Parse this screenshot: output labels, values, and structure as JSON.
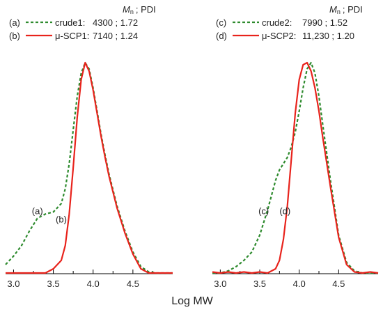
{
  "xlabel": "Log MW",
  "chart_data": [
    {
      "type": "line",
      "xlim": [
        2.9,
        5.0
      ],
      "ylim": [
        0,
        1.0
      ],
      "xticks": [
        "3.0",
        "3.5",
        "4.0",
        "4.5"
      ],
      "legend": {
        "header_italic": "M",
        "header_sub": "n",
        "header_rest": "; PDI",
        "entries": [
          {
            "tag": "(a)",
            "name": "crude1:",
            "values": "4300 ; 1.72",
            "color": "#2e8b2e",
            "dash": "dashed"
          },
          {
            "tag": "(b)",
            "name": "μ-SCP1:",
            "values": "7140 ; 1.24",
            "color": "#e8231c",
            "dash": "solid"
          }
        ]
      },
      "series": [
        {
          "ref": "a",
          "label": "(a)",
          "label_at": [
            3.3,
            0.28
          ],
          "color": "#2e8b2e",
          "dash": "dashed",
          "x": [
            2.9,
            3.0,
            3.1,
            3.2,
            3.3,
            3.4,
            3.5,
            3.6,
            3.65,
            3.7,
            3.75,
            3.8,
            3.85,
            3.9,
            3.95,
            4.0,
            4.05,
            4.1,
            4.15,
            4.2,
            4.3,
            4.4,
            4.5,
            4.6,
            4.7,
            4.8,
            4.9,
            5.0
          ],
          "y": [
            0.04,
            0.08,
            0.13,
            0.2,
            0.26,
            0.28,
            0.29,
            0.33,
            0.4,
            0.52,
            0.68,
            0.84,
            0.95,
            1.0,
            0.97,
            0.88,
            0.77,
            0.66,
            0.56,
            0.47,
            0.32,
            0.2,
            0.1,
            0.03,
            0.005,
            0.0,
            0.0,
            0.0
          ]
        },
        {
          "ref": "b",
          "label": "(b)",
          "label_at": [
            3.6,
            0.24
          ],
          "color": "#e8231c",
          "dash": "solid",
          "x": [
            2.9,
            3.0,
            3.1,
            3.2,
            3.3,
            3.4,
            3.5,
            3.6,
            3.65,
            3.7,
            3.75,
            3.8,
            3.85,
            3.9,
            3.95,
            4.0,
            4.05,
            4.1,
            4.15,
            4.2,
            4.3,
            4.4,
            4.5,
            4.6,
            4.7,
            4.8,
            4.9,
            5.0
          ],
          "y": [
            0.0,
            0.0,
            0.0,
            0.0,
            0.0,
            0.0,
            0.02,
            0.06,
            0.13,
            0.28,
            0.5,
            0.74,
            0.92,
            1.0,
            0.96,
            0.87,
            0.76,
            0.65,
            0.55,
            0.46,
            0.31,
            0.19,
            0.09,
            0.02,
            0.0,
            0.0,
            0.0,
            0.0
          ]
        }
      ]
    },
    {
      "type": "line",
      "xlim": [
        2.9,
        5.0
      ],
      "ylim": [
        0,
        1.0
      ],
      "xticks": [
        "3.0",
        "3.5",
        "4.0",
        "4.5"
      ],
      "legend": {
        "header_italic": "M",
        "header_sub": "n",
        "header_rest": "; PDI",
        "entries": [
          {
            "tag": "(c)",
            "name": "crude2:",
            "values": "7990 ; 1.52",
            "color": "#2e8b2e",
            "dash": "dashed"
          },
          {
            "tag": "(d)",
            "name": "μ-SCP2:",
            "values": "11,230 ; 1.20",
            "color": "#e8231c",
            "dash": "solid"
          }
        ]
      },
      "series": [
        {
          "ref": "c",
          "label": "(c)",
          "label_at": [
            3.55,
            0.28
          ],
          "color": "#2e8b2e",
          "dash": "dashed",
          "x": [
            2.9,
            3.0,
            3.1,
            3.2,
            3.3,
            3.4,
            3.5,
            3.6,
            3.7,
            3.75,
            3.8,
            3.85,
            3.9,
            3.95,
            4.0,
            4.05,
            4.1,
            4.15,
            4.2,
            4.25,
            4.3,
            4.4,
            4.5,
            4.6,
            4.7,
            4.8,
            4.9,
            5.0
          ],
          "y": [
            0.0,
            0.0,
            0.01,
            0.03,
            0.06,
            0.1,
            0.18,
            0.3,
            0.44,
            0.49,
            0.52,
            0.55,
            0.6,
            0.67,
            0.77,
            0.88,
            0.97,
            1.0,
            0.95,
            0.84,
            0.7,
            0.43,
            0.18,
            0.05,
            0.01,
            0.0,
            0.0,
            0.0
          ]
        },
        {
          "ref": "d",
          "label": "(d)",
          "label_at": [
            3.82,
            0.28
          ],
          "color": "#e8231c",
          "dash": "solid",
          "x": [
            2.9,
            3.0,
            3.1,
            3.2,
            3.3,
            3.4,
            3.5,
            3.6,
            3.7,
            3.75,
            3.8,
            3.85,
            3.9,
            3.95,
            4.0,
            4.05,
            4.1,
            4.15,
            4.2,
            4.25,
            4.3,
            4.4,
            4.5,
            4.6,
            4.7,
            4.8,
            4.9,
            5.0
          ],
          "y": [
            0.005,
            0.0,
            0.005,
            0.0,
            0.005,
            0.0,
            0.005,
            0.0,
            0.02,
            0.06,
            0.16,
            0.32,
            0.54,
            0.76,
            0.92,
            0.99,
            1.0,
            0.96,
            0.88,
            0.77,
            0.64,
            0.4,
            0.17,
            0.04,
            0.005,
            0.0,
            0.005,
            0.0
          ]
        }
      ]
    }
  ]
}
